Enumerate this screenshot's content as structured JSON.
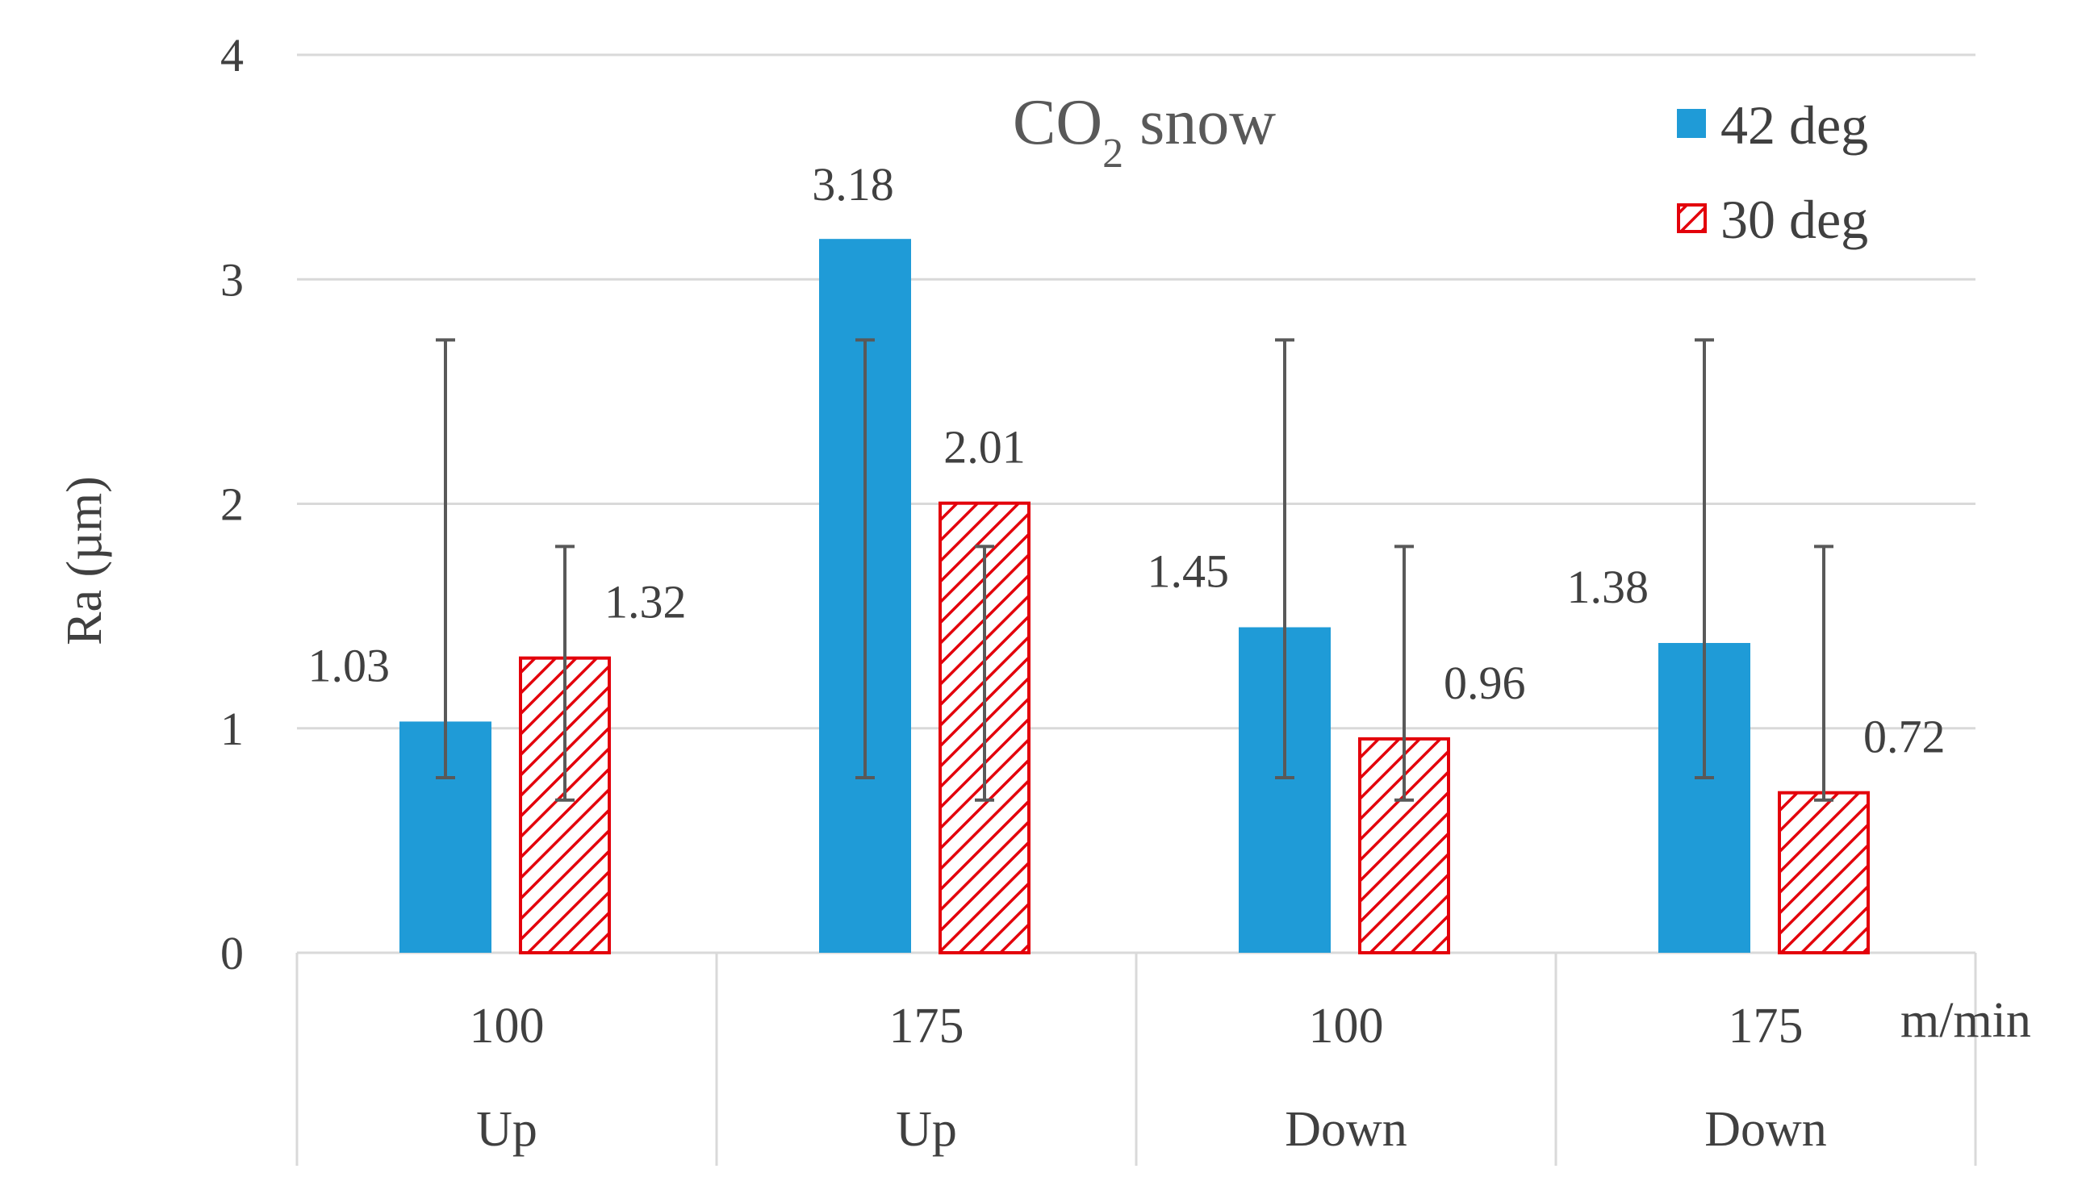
{
  "chart_data": {
    "type": "bar",
    "title_main": "CO",
    "title_sub": "2",
    "title_rest": " snow",
    "ylabel": "Ra (µm)",
    "xunit": "m/min",
    "ylim": [
      0,
      4
    ],
    "yticks": [
      "0",
      "1",
      "2",
      "3",
      "4"
    ],
    "categories": [
      {
        "speed": "100",
        "direction": "Up"
      },
      {
        "speed": "175",
        "direction": "Up"
      },
      {
        "speed": "100",
        "direction": "Down"
      },
      {
        "speed": "175",
        "direction": "Down"
      }
    ],
    "series": [
      {
        "name": "42 deg",
        "color": "#1f9bd7",
        "pattern": "solid",
        "values": [
          1.03,
          3.18,
          1.45,
          1.38
        ],
        "labels": [
          "1.03",
          "3.18",
          "1.45",
          "1.38"
        ],
        "error_low": [
          0.78,
          0.78,
          0.78,
          0.78
        ],
        "error_high": [
          2.73,
          2.73,
          2.73,
          2.73
        ]
      },
      {
        "name": "30 deg",
        "color": "#e3000b",
        "pattern": "hatched",
        "values": [
          1.32,
          2.01,
          0.96,
          0.72
        ],
        "labels": [
          "1.32",
          "2.01",
          "0.96",
          "0.72"
        ],
        "error_low": [
          0.68,
          0.68,
          0.68,
          0.68
        ],
        "error_high": [
          1.81,
          1.81,
          1.81,
          1.81
        ]
      }
    ],
    "legend_position": "top-right",
    "grid": true
  }
}
